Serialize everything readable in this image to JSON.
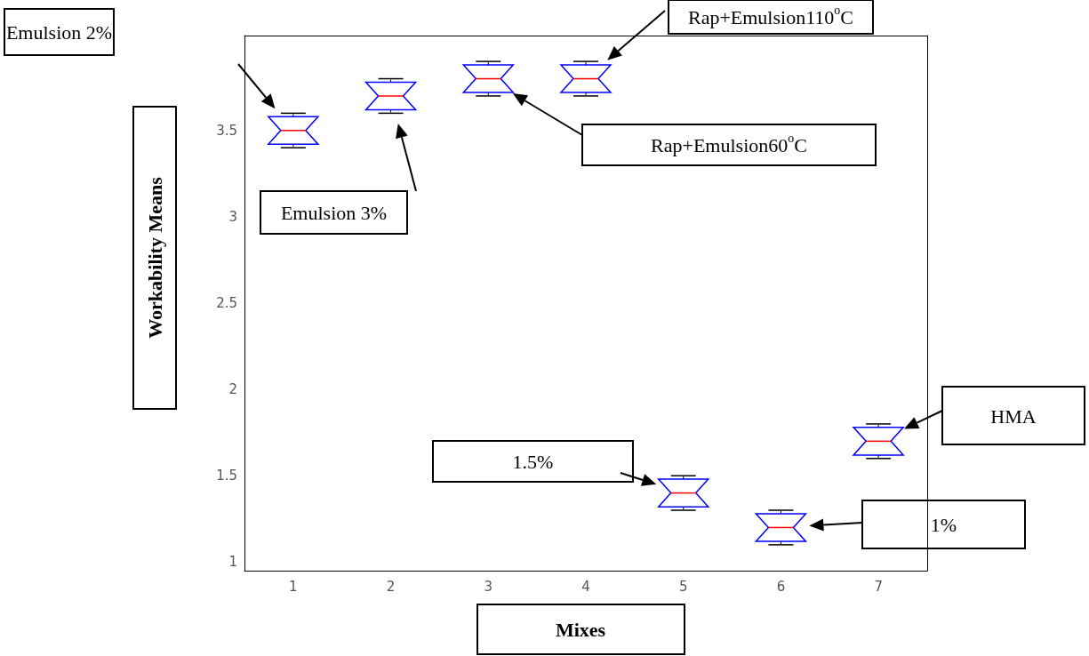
{
  "chart_data": {
    "type": "box",
    "xlabel": "Mixes",
    "ylabel": "Workability Means",
    "categories": [
      "1",
      "2",
      "3",
      "4",
      "5",
      "6",
      "7"
    ],
    "boxes": [
      {
        "low": 3.4,
        "q1": 3.42,
        "median": 3.5,
        "q3": 3.58,
        "high": 3.6
      },
      {
        "low": 3.6,
        "q1": 3.62,
        "median": 3.7,
        "q3": 3.78,
        "high": 3.8
      },
      {
        "low": 3.7,
        "q1": 3.72,
        "median": 3.8,
        "q3": 3.88,
        "high": 3.9
      },
      {
        "low": 3.7,
        "q1": 3.72,
        "median": 3.8,
        "q3": 3.88,
        "high": 3.9
      },
      {
        "low": 1.3,
        "q1": 1.32,
        "median": 1.4,
        "q3": 1.48,
        "high": 1.5
      },
      {
        "low": 1.1,
        "q1": 1.12,
        "median": 1.2,
        "q3": 1.28,
        "high": 1.3
      },
      {
        "low": 1.6,
        "q1": 1.62,
        "median": 1.7,
        "q3": 1.78,
        "high": 1.8
      }
    ],
    "color": "#0000ff",
    "ylim": [
      0.95,
      4.05
    ],
    "yticks": [
      1,
      1.5,
      2,
      2.5,
      3,
      3.5
    ],
    "grid": false,
    "annotations": [
      "Emulsion 2%",
      "Emulsion 3%",
      "Rap+Emulsion60$^{o}$C",
      "Rap+Emulsion110$^{o}$C",
      "1.5%",
      "1%",
      "HMA"
    ]
  }
}
